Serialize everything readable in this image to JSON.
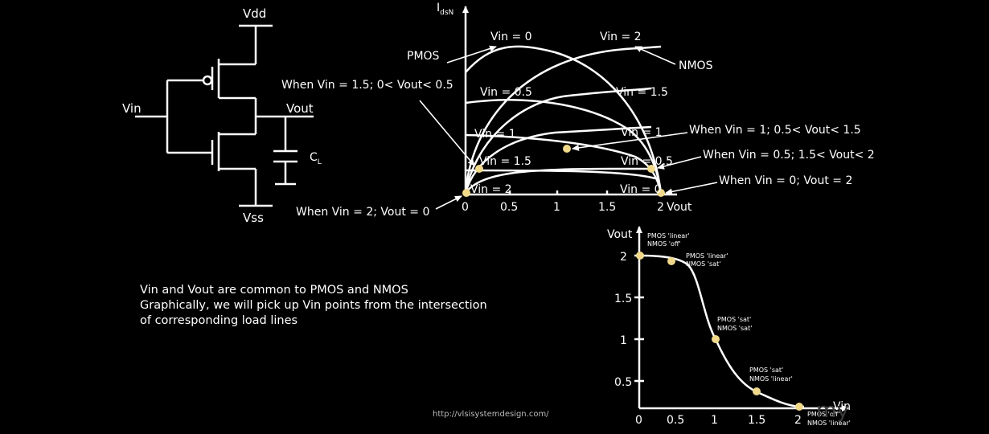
{
  "circuit": {
    "vdd": "Vdd",
    "vss": "Vss",
    "vin": "Vin",
    "vout": "Vout",
    "cap": "C",
    "cap_sub": "L"
  },
  "load_lines": {
    "ylabel_main": "I",
    "ylabel_sub": "dsN",
    "xlabel": "Vout",
    "xticks": [
      "0",
      "0.5",
      "1",
      "1.5",
      "2"
    ],
    "labels": {
      "pmos": "PMOS",
      "nmos": "NMOS",
      "vin0_top": "Vin = 0",
      "vin2_top": "Vin = 2",
      "vin05_left": "Vin = 0.5",
      "vin15_right": "Vin = 1.5",
      "vin1_left": "Vin = 1",
      "vin1_right": "Vin = 1",
      "vin15_left": "Vin = 1.5",
      "vin05_right": "Vin = 0.5",
      "vin2_bottom": "Vin = 2",
      "vin0_bottom": "Vin = 0"
    },
    "annotations": {
      "a15": "When Vin = 1.5; 0< Vout< 0.5",
      "a1": "When Vin = 1; 0.5< Vout< 1.5",
      "a05": "When Vin = 0.5; 1.5< Vout< 2",
      "a0": "When Vin = 0; Vout = 2",
      "a2": "When Vin = 2; Vout = 0"
    }
  },
  "vtc": {
    "ylabel": "Vout",
    "xlabel": "Vin",
    "xticks": [
      "0",
      "0.5",
      "1",
      "1.5",
      "2"
    ],
    "yticks": [
      "0.5",
      "1",
      "1.5",
      "2"
    ],
    "regions": {
      "r1a": "PMOS 'linear'",
      "r1b": "NMOS 'off'",
      "r2a": "PMOS 'linear'",
      "r2b": "NMOS 'sat'",
      "r3a": "PMOS 'sat'",
      "r3b": "NMOS 'sat'",
      "r4a": "PMOS 'sat'",
      "r4b": "NMOS 'linear'",
      "r5a": "PMOS 'off'",
      "r5b": "NMOS 'linear'"
    }
  },
  "caption": [
    "Vin and Vout are common to PMOS and NMOS",
    "Graphically, we will pick up Vin points from the intersection",
    "of corresponding load lines"
  ],
  "url": "http://vlsisystemdesign.com/",
  "watermark": "my",
  "colors": {
    "background": "#000000",
    "line": "#ffffff",
    "marker": "#f0d98a"
  }
}
